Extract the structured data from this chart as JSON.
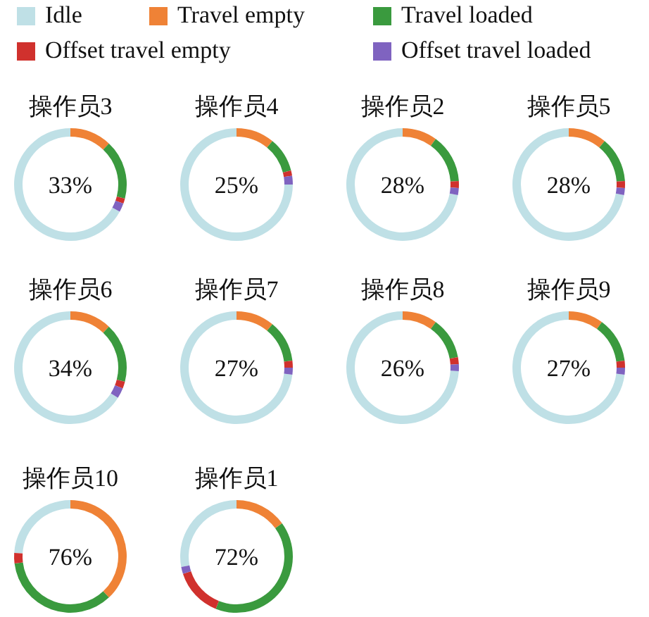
{
  "chart_data": [
    {
      "type": "donut",
      "title": "操作员3",
      "legend": "top",
      "categories": [
        "Idle",
        "Travel empty",
        "Travel loaded",
        "Offset travel empty",
        "Offset travel loaded"
      ],
      "values": [
        67,
        12,
        17,
        1.5,
        2.5
      ],
      "colors": [
        "#bfe0e6",
        "#ef8236",
        "#3a9a3e",
        "#d0312d",
        "#7f63c0"
      ],
      "annotations": [
        "33%"
      ]
    },
    {
      "type": "donut",
      "title": "操作员4",
      "values": [
        75,
        11,
        10,
        1.5,
        2.5
      ],
      "annotations": [
        "25%"
      ]
    },
    {
      "type": "donut",
      "title": "操作员2",
      "values": [
        72,
        10,
        14,
        2,
        2
      ],
      "annotations": [
        "28%"
      ]
    },
    {
      "type": "donut",
      "title": "操作员5",
      "values": [
        72,
        11,
        13,
        2,
        2
      ],
      "annotations": [
        "28%"
      ]
    },
    {
      "type": "donut",
      "title": "操作员6",
      "values": [
        66,
        12,
        17,
        2,
        3
      ],
      "annotations": [
        "34%"
      ]
    },
    {
      "type": "donut",
      "title": "操作员7",
      "values": [
        73,
        11,
        12,
        2,
        2
      ],
      "annotations": [
        "27%"
      ]
    },
    {
      "type": "donut",
      "title": "操作员8",
      "values": [
        74,
        10,
        12,
        2,
        2
      ],
      "annotations": [
        "26%"
      ]
    },
    {
      "type": "donut",
      "title": "操作员9",
      "values": [
        73,
        10,
        13,
        2,
        2
      ],
      "annotations": [
        "27%"
      ]
    },
    {
      "type": "donut",
      "title": "操作员10",
      "values": [
        24,
        38,
        35,
        3,
        0
      ],
      "annotations": [
        "76%"
      ]
    },
    {
      "type": "donut",
      "title": "操作员1",
      "values": [
        28,
        15,
        41,
        14,
        2
      ],
      "annotations": [
        "72%"
      ]
    }
  ]
}
